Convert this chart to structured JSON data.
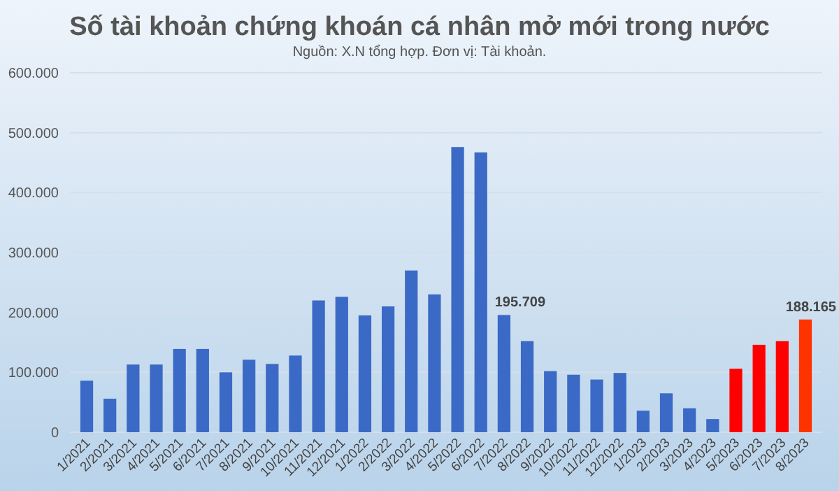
{
  "chart_data": {
    "type": "bar",
    "title": "Số tài khoản chứng khoán cá nhân mở mới trong nước",
    "subtitle": "Nguồn: X.N tổng hợp. Đơn vị: Tài khoản.",
    "categories": [
      "1/2021",
      "2/2021",
      "3/2021",
      "4/2021",
      "5/2021",
      "6/2021",
      "7/2021",
      "8/2021",
      "9/2021",
      "10/2021",
      "11/2021",
      "12/2021",
      "1/2022",
      "2/2022",
      "3/2022",
      "4/2022",
      "5/2022",
      "6/2022",
      "7/2022",
      "8/2022",
      "9/2022",
      "10/2022",
      "11/2022",
      "12/2022",
      "1/2023",
      "2/2023",
      "3/2023",
      "4/2023",
      "5/2023",
      "6/2023",
      "7/2023",
      "8/2023"
    ],
    "values": [
      86000,
      56000,
      113000,
      113000,
      139000,
      139000,
      100000,
      121000,
      114000,
      128000,
      220000,
      226000,
      195000,
      210000,
      270000,
      230000,
      476000,
      467000,
      195709,
      152000,
      102000,
      96000,
      88000,
      99000,
      36000,
      65000,
      40000,
      22000,
      106000,
      146000,
      152000,
      188165
    ],
    "colors": [
      "#3b69c6",
      "#3b69c6",
      "#3b69c6",
      "#3b69c6",
      "#3b69c6",
      "#3b69c6",
      "#3b69c6",
      "#3b69c6",
      "#3b69c6",
      "#3b69c6",
      "#3b69c6",
      "#3b69c6",
      "#3b69c6",
      "#3b69c6",
      "#3b69c6",
      "#3b69c6",
      "#3b69c6",
      "#3b69c6",
      "#3b69c6",
      "#3b69c6",
      "#3b69c6",
      "#3b69c6",
      "#3b69c6",
      "#3b69c6",
      "#3b69c6",
      "#3b69c6",
      "#3b69c6",
      "#3b69c6",
      "#ff0000",
      "#ff0000",
      "#ff0000",
      "#ff3300"
    ],
    "value_labels": [
      null,
      null,
      null,
      null,
      null,
      null,
      null,
      null,
      null,
      null,
      null,
      null,
      null,
      null,
      null,
      null,
      null,
      null,
      "195.709",
      null,
      null,
      null,
      null,
      null,
      null,
      null,
      null,
      null,
      null,
      null,
      null,
      "188.165"
    ],
    "ylim": [
      0,
      600000
    ],
    "yticks": [
      {
        "value": 0,
        "label": "0"
      },
      {
        "value": 100000,
        "label": "100.000"
      },
      {
        "value": 200000,
        "label": "200.000"
      },
      {
        "value": 300000,
        "label": "300.000"
      },
      {
        "value": 400000,
        "label": "400.000"
      },
      {
        "value": 500000,
        "label": "500.000"
      },
      {
        "value": 600000,
        "label": "600.000"
      }
    ],
    "grid": true
  }
}
